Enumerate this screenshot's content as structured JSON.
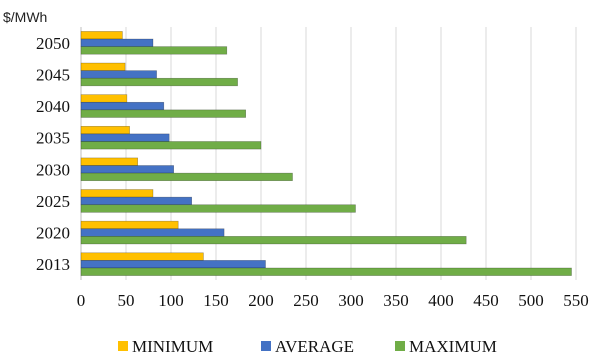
{
  "chart_data": {
    "type": "bar",
    "orientation": "horizontal",
    "unit_label": "$/MWh",
    "categories": [
      "2050",
      "2045",
      "2040",
      "2035",
      "2030",
      "2025",
      "2020",
      "2013"
    ],
    "series": [
      {
        "name": "MINIMUM",
        "color": "#ffc000",
        "values": [
          46,
          49,
          51,
          54,
          63,
          80,
          108,
          136
        ]
      },
      {
        "name": "AVERAGE",
        "color": "#4472c4",
        "values": [
          80,
          84,
          92,
          98,
          103,
          123,
          159,
          205
        ]
      },
      {
        "name": "MAXIMUM",
        "color": "#70ad47",
        "values": [
          162,
          174,
          183,
          200,
          235,
          305,
          428,
          545
        ]
      }
    ],
    "xticks": [
      0,
      50,
      100,
      150,
      200,
      250,
      300,
      350,
      400,
      450,
      500,
      550
    ],
    "xlim": [
      0,
      550
    ],
    "grid": "vertical",
    "legend": "bottom"
  }
}
